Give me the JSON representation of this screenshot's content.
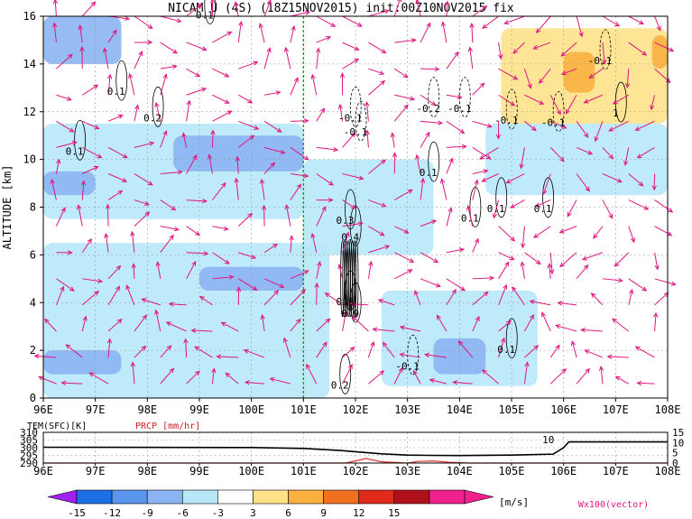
{
  "title": "NICAM U (4S) (18Z15NOV2015) init:00Z10NOV2015 fix",
  "colors": {
    "arrow": "#e0157f",
    "precip_line": "#e03030",
    "prcp_label": "#d02020",
    "marker_line": "#1aa31a",
    "frame": "#000000",
    "grid": "#999999",
    "shading": {
      "-15": "#a020f0",
      "-12": "#1e6ee6",
      "-9": "#5a96ee",
      "-6": "#8cb4f2",
      "-3": "#b8e8f8",
      "3": "#ffffff",
      "6": "#fde28a",
      "9": "#fbb040",
      "12": "#f07020",
      "15": "#e02a1a",
      "above": "#b0101a",
      "max": "#f0208c"
    }
  },
  "chart_data": [
    {
      "type": "heatmap",
      "title": "NICAM U (4S) (18Z15NOV2015) init:00Z10NOV2015 fix",
      "xlabel": "",
      "ylabel": "ALTITUDE [km]",
      "xlim": [
        96,
        108
      ],
      "ylim": [
        0,
        16
      ],
      "x_ticks": [
        "96E",
        "97E",
        "98E",
        "99E",
        "100E",
        "101E",
        "102E",
        "103E",
        "104E",
        "105E",
        "106E",
        "107E",
        "108E"
      ],
      "y_ticks": [
        "0",
        "2",
        "4",
        "6",
        "8",
        "10",
        "12",
        "14",
        "16"
      ],
      "grid": true,
      "marker_line_x": 101.0,
      "shaded_regions": [
        {
          "level": -6,
          "x": [
            96.0,
            97.5
          ],
          "y": [
            14.0,
            16.0
          ]
        },
        {
          "level": -3,
          "x": [
            96.0,
            101.0
          ],
          "y": [
            7.5,
            11.5
          ]
        },
        {
          "level": -6,
          "x": [
            96.0,
            97.0
          ],
          "y": [
            8.5,
            9.5
          ]
        },
        {
          "level": -6,
          "x": [
            98.5,
            101.0
          ],
          "y": [
            9.5,
            11.0
          ]
        },
        {
          "level": -3,
          "x": [
            96.0,
            101.5
          ],
          "y": [
            0.0,
            6.5
          ]
        },
        {
          "level": -6,
          "x": [
            99.0,
            101.0
          ],
          "y": [
            4.5,
            5.5
          ]
        },
        {
          "level": -6,
          "x": [
            96.0,
            97.5
          ],
          "y": [
            1.0,
            2.0
          ]
        },
        {
          "level": -3,
          "x": [
            102.5,
            105.5
          ],
          "y": [
            0.5,
            4.5
          ]
        },
        {
          "level": -6,
          "x": [
            103.5,
            104.5
          ],
          "y": [
            1.0,
            2.5
          ]
        },
        {
          "level": -3,
          "x": [
            101.0,
            103.5
          ],
          "y": [
            6.0,
            10.0
          ]
        },
        {
          "level": -3,
          "x": [
            104.5,
            108.0
          ],
          "y": [
            8.5,
            11.5
          ]
        },
        {
          "level": 6,
          "x": [
            104.8,
            108.0
          ],
          "y": [
            11.5,
            15.5
          ]
        },
        {
          "level": 9,
          "x": [
            106.0,
            106.6
          ],
          "y": [
            12.8,
            14.5
          ]
        },
        {
          "level": 9,
          "x": [
            107.7,
            108.0
          ],
          "y": [
            13.8,
            15.2
          ]
        }
      ],
      "contour_labels": [
        {
          "text": "0.1",
          "x": 99.1,
          "y": 15.9
        },
        {
          "text": "0.1",
          "x": 97.4,
          "y": 12.7
        },
        {
          "text": "0.2",
          "x": 98.1,
          "y": 11.6
        },
        {
          "text": "0.1",
          "x": 96.6,
          "y": 10.2
        },
        {
          "text": "-0.1",
          "x": 101.9,
          "y": 11.6
        },
        {
          "text": "-0.1",
          "x": 102.0,
          "y": 11.0
        },
        {
          "text": "-0.2",
          "x": 103.4,
          "y": 12.0
        },
        {
          "text": "-0.1",
          "x": 104.0,
          "y": 12.0
        },
        {
          "text": "-0.1",
          "x": 104.9,
          "y": 11.5
        },
        {
          "text": "-0.1",
          "x": 105.8,
          "y": 11.4
        },
        {
          "text": "-0.1",
          "x": 106.7,
          "y": 14.0
        },
        {
          "text": "1",
          "x": 107.0,
          "y": 11.8
        },
        {
          "text": "0.1",
          "x": 103.4,
          "y": 9.3
        },
        {
          "text": "0.1",
          "x": 104.2,
          "y": 7.4
        },
        {
          "text": "0.1",
          "x": 104.7,
          "y": 7.8
        },
        {
          "text": "0.1",
          "x": 105.6,
          "y": 7.8
        },
        {
          "text": "0.3",
          "x": 101.8,
          "y": 7.3
        },
        {
          "text": "0.4",
          "x": 101.9,
          "y": 6.6
        },
        {
          "text": "0.8",
          "x": 101.8,
          "y": 3.9
        },
        {
          "text": "0.9",
          "x": 101.9,
          "y": 3.4
        },
        {
          "text": "-0.1",
          "x": 103.0,
          "y": 1.2
        },
        {
          "text": "0.1",
          "x": 104.9,
          "y": 1.9
        },
        {
          "text": "0.2",
          "x": 101.7,
          "y": 0.4
        }
      ],
      "shading_legend": {
        "levels": [
          -15,
          -12,
          -9,
          -6,
          -3,
          3,
          6,
          9,
          12,
          15
        ],
        "unit": "[m/s]"
      },
      "vector_label": "Wx100(vector)"
    },
    {
      "type": "line",
      "xlim": [
        96,
        108
      ],
      "x_ticks": [
        "96E",
        "97E",
        "98E",
        "99E",
        "100E",
        "101E",
        "102E",
        "103E",
        "104E",
        "105E",
        "106E",
        "107E",
        "108E"
      ],
      "left_axis": {
        "label": "TEM(SFC)[K]",
        "ylim": [
          290,
          310
        ],
        "ticks": [
          "290",
          "295",
          "300",
          "305",
          "310"
        ]
      },
      "right_axis": {
        "label": "PRCP [mm/hr]",
        "ylim": [
          0,
          15
        ],
        "ticks": [
          "0",
          "5",
          "10",
          "15"
        ]
      },
      "annotation": {
        "text": "10",
        "x": 105.8
      },
      "series": [
        {
          "name": "TEM(SFC)[K]",
          "axis": "left",
          "x": [
            96.0,
            100.0,
            101.0,
            101.7,
            102.5,
            103.0,
            103.4,
            104.0,
            105.0,
            105.8,
            106.0,
            106.1,
            108.0
          ],
          "y": [
            300.3,
            300.1,
            299.5,
            298.2,
            296.0,
            295.2,
            295.0,
            294.9,
            295.2,
            295.8,
            300.0,
            303.8,
            303.8
          ]
        },
        {
          "name": "PRCP [mm/hr]",
          "axis": "right",
          "x": [
            96.0,
            101.8,
            102.0,
            102.2,
            102.5,
            103.0,
            103.2,
            103.5,
            103.8,
            104.2,
            108.0
          ],
          "y": [
            0.0,
            0.0,
            1.0,
            2.2,
            0.6,
            0.0,
            0.8,
            1.0,
            0.4,
            0.0,
            0.0
          ]
        }
      ]
    }
  ]
}
